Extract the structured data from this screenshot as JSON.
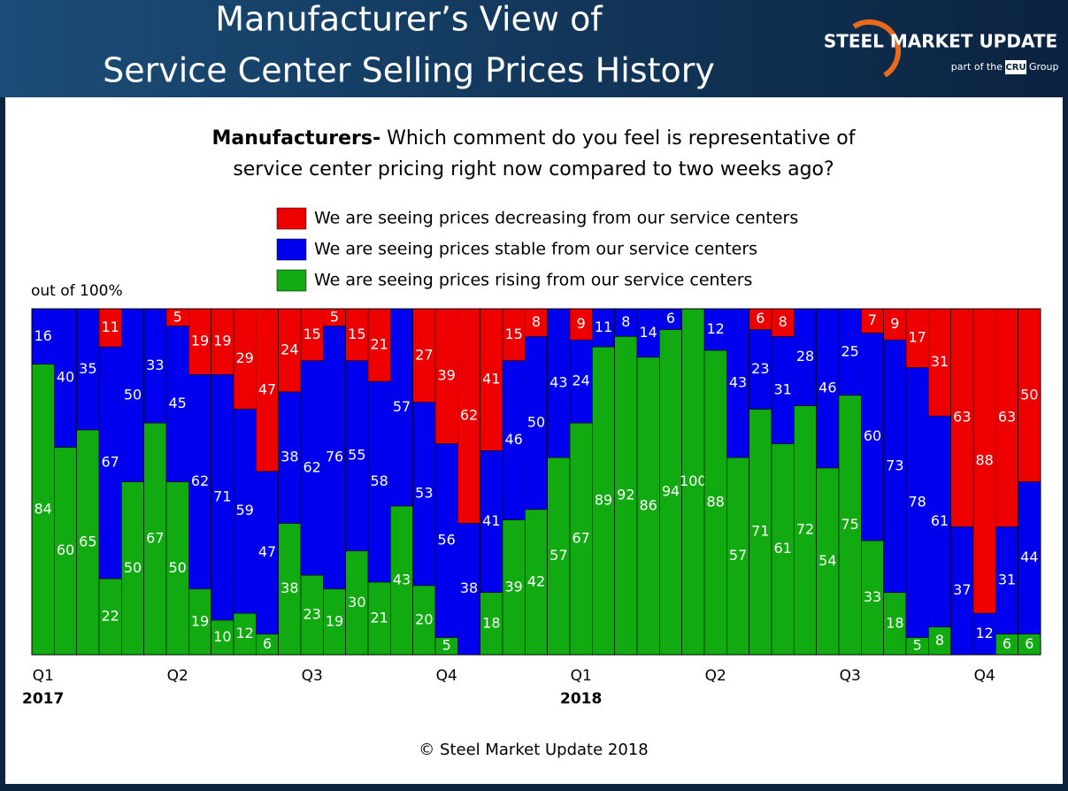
{
  "header": {
    "title_lines": [
      "Manufacturer’s View of",
      "Service Center Selling Prices History"
    ],
    "logo_main": "STEEL MARKET UPDATE",
    "logo_sub": "part of the",
    "logo_box": "CRU",
    "logo_group": "Group"
  },
  "chart_data": {
    "type": "stacked_bar",
    "subtitle_bold": "Manufacturers-",
    "subtitle_lines": [
      "Which comment do you feel is representative of",
      "service center pricing right now compared to two weeks ago?"
    ],
    "y_label": "out of 100%",
    "footer": "© Steel Market Update 2018",
    "ylim": [
      0,
      100
    ],
    "categories": [
      "Q1",
      null,
      null,
      null,
      null,
      null,
      "Q2",
      null,
      null,
      null,
      null,
      null,
      "Q3",
      null,
      null,
      null,
      null,
      null,
      "Q4",
      null,
      null,
      null,
      null,
      null,
      "Q1",
      null,
      null,
      null,
      null,
      null,
      "Q2",
      null,
      null,
      null,
      null,
      null,
      "Q3",
      null,
      null,
      null,
      null,
      null,
      "Q4",
      null,
      null
    ],
    "year_labels": [
      "2017",
      null,
      null,
      null,
      null,
      null,
      null,
      null,
      null,
      null,
      null,
      null,
      null,
      null,
      null,
      null,
      null,
      null,
      null,
      null,
      null,
      null,
      null,
      null,
      "2018",
      null,
      null,
      null,
      null,
      null,
      null,
      null,
      null,
      null,
      null,
      null,
      null,
      null,
      null,
      null,
      null,
      null,
      null,
      null,
      null
    ],
    "series": [
      {
        "name": "We are seeing prices decreasing from our service centers",
        "color": "#ee0000",
        "values": [
          0,
          0,
          0,
          11,
          0,
          0,
          5,
          19,
          19,
          29,
          47,
          24,
          15,
          5,
          15,
          21,
          0,
          27,
          39,
          62,
          41,
          15,
          8,
          0,
          9,
          0,
          0,
          0,
          0,
          0,
          0,
          0,
          6,
          8,
          0,
          0,
          0,
          7,
          9,
          17,
          31,
          63,
          88,
          63,
          50
        ]
      },
      {
        "name": "We are seeing prices stable from our service centers",
        "color": "#0000ee",
        "values": [
          16,
          40,
          35,
          67,
          50,
          33,
          45,
          62,
          71,
          59,
          47,
          38,
          62,
          76,
          55,
          58,
          57,
          53,
          56,
          38,
          41,
          46,
          50,
          43,
          24,
          11,
          8,
          14,
          6,
          0,
          12,
          43,
          23,
          31,
          28,
          46,
          25,
          60,
          73,
          78,
          61,
          37,
          12,
          31,
          44
        ]
      },
      {
        "name": "We are seeing prices rising from our service centers",
        "color": "#11aa11",
        "values": [
          84,
          60,
          65,
          22,
          50,
          67,
          50,
          19,
          10,
          12,
          6,
          38,
          23,
          19,
          30,
          21,
          43,
          20,
          5,
          0,
          18,
          39,
          42,
          57,
          67,
          89,
          92,
          86,
          94,
          100,
          88,
          57,
          71,
          61,
          72,
          54,
          75,
          33,
          18,
          5,
          8,
          0,
          0,
          6,
          6
        ]
      }
    ]
  }
}
